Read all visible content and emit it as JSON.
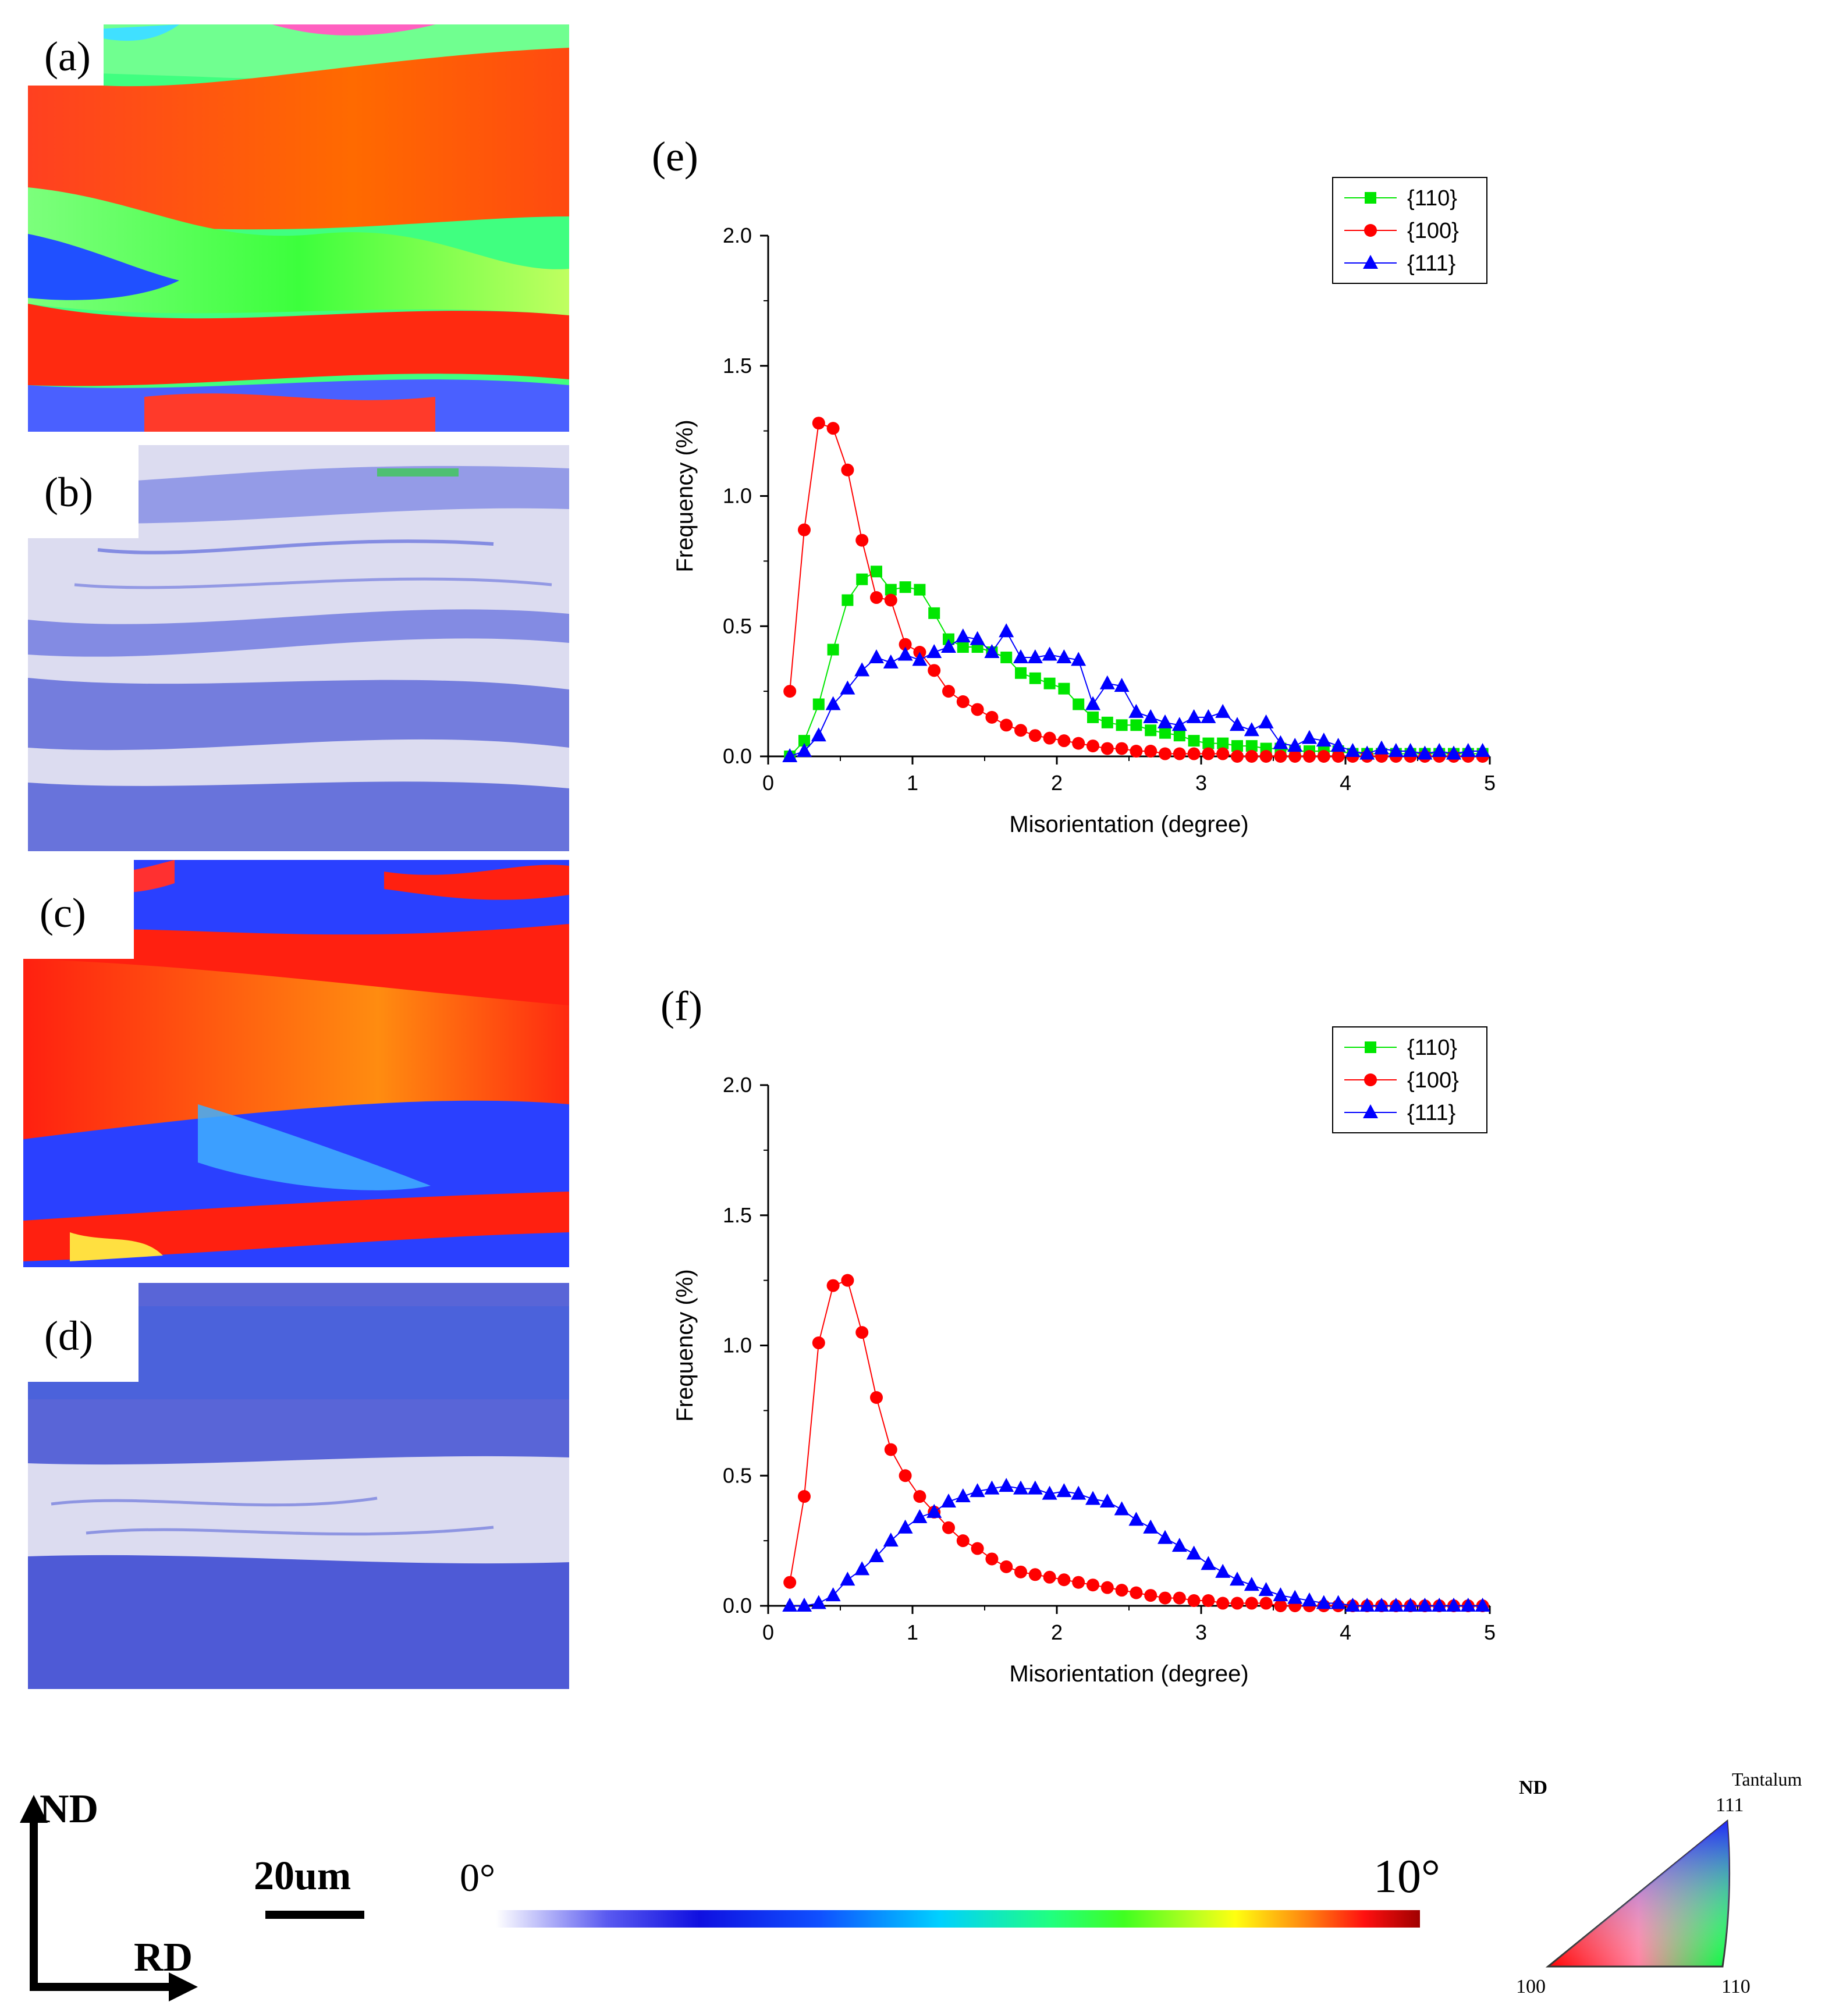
{
  "panels": {
    "a": "(a)",
    "b": "(b)",
    "c": "(c)",
    "d": "(d)",
    "e": "(e)",
    "f": "(f)"
  },
  "colors": {
    "s110": "#00e600",
    "s100": "#ff0000",
    "s111": "#0000ff",
    "map_red": "#ff2a10",
    "map_green": "#3cff3c",
    "map_blue": "#2030ff",
    "kam_bg": "#dcdcf0"
  },
  "chart_data": [
    {
      "id": "e",
      "type": "line",
      "xlabel": "Misorientation (degree)",
      "ylabel": "Frequency (%)",
      "xlim": [
        0,
        5
      ],
      "ylim": [
        0,
        2.0
      ],
      "xticks": [
        "0",
        "1",
        "2",
        "3",
        "4",
        "5"
      ],
      "yticks": [
        "0.0",
        "0.5",
        "1.0",
        "1.5",
        "2.0"
      ],
      "legend": [
        "{110}",
        "{100}",
        "{111}"
      ],
      "legend_position": "top-right",
      "series": [
        {
          "name": "{110}",
          "marker": "square",
          "color": "#00e600",
          "x": [
            0.15,
            0.25,
            0.35,
            0.45,
            0.55,
            0.65,
            0.75,
            0.85,
            0.95,
            1.05,
            1.15,
            1.25,
            1.35,
            1.45,
            1.55,
            1.65,
            1.75,
            1.85,
            1.95,
            2.05,
            2.15,
            2.25,
            2.35,
            2.45,
            2.55,
            2.65,
            2.75,
            2.85,
            2.95,
            3.05,
            3.15,
            3.25,
            3.35,
            3.45,
            3.55,
            3.65,
            3.75,
            3.85,
            3.95,
            4.05,
            4.15,
            4.25,
            4.35,
            4.45,
            4.55,
            4.65,
            4.75,
            4.85,
            4.95
          ],
          "values": [
            0.0,
            0.06,
            0.2,
            0.41,
            0.6,
            0.68,
            0.71,
            0.64,
            0.65,
            0.64,
            0.55,
            0.45,
            0.42,
            0.42,
            0.4,
            0.38,
            0.32,
            0.3,
            0.28,
            0.26,
            0.2,
            0.15,
            0.13,
            0.12,
            0.12,
            0.1,
            0.09,
            0.08,
            0.06,
            0.05,
            0.05,
            0.04,
            0.04,
            0.03,
            0.03,
            0.02,
            0.02,
            0.02,
            0.02,
            0.01,
            0.01,
            0.01,
            0.01,
            0.01,
            0.01,
            0.01,
            0.01,
            0.01,
            0.01
          ]
        },
        {
          "name": "{100}",
          "marker": "circle",
          "color": "#ff0000",
          "x": [
            0.15,
            0.25,
            0.35,
            0.45,
            0.55,
            0.65,
            0.75,
            0.85,
            0.95,
            1.05,
            1.15,
            1.25,
            1.35,
            1.45,
            1.55,
            1.65,
            1.75,
            1.85,
            1.95,
            2.05,
            2.15,
            2.25,
            2.35,
            2.45,
            2.55,
            2.65,
            2.75,
            2.85,
            2.95,
            3.05,
            3.15,
            3.25,
            3.35,
            3.45,
            3.55,
            3.65,
            3.75,
            3.85,
            3.95,
            4.05,
            4.15,
            4.25,
            4.35,
            4.45,
            4.55,
            4.65,
            4.75,
            4.85,
            4.95
          ],
          "values": [
            0.25,
            0.87,
            1.28,
            1.26,
            1.1,
            0.83,
            0.61,
            0.6,
            0.43,
            0.4,
            0.33,
            0.25,
            0.21,
            0.18,
            0.15,
            0.12,
            0.1,
            0.08,
            0.07,
            0.06,
            0.05,
            0.04,
            0.03,
            0.03,
            0.02,
            0.02,
            0.01,
            0.01,
            0.01,
            0.01,
            0.01,
            0.0,
            0.0,
            0.0,
            0.0,
            0.0,
            0.0,
            0.0,
            0.0,
            0.0,
            0.0,
            0.0,
            0.0,
            0.0,
            0.0,
            0.0,
            0.0,
            0.0,
            0.0
          ]
        },
        {
          "name": "{111}",
          "marker": "triangle",
          "color": "#0000ff",
          "x": [
            0.15,
            0.25,
            0.35,
            0.45,
            0.55,
            0.65,
            0.75,
            0.85,
            0.95,
            1.05,
            1.15,
            1.25,
            1.35,
            1.45,
            1.55,
            1.65,
            1.75,
            1.85,
            1.95,
            2.05,
            2.15,
            2.25,
            2.35,
            2.45,
            2.55,
            2.65,
            2.75,
            2.85,
            2.95,
            3.05,
            3.15,
            3.25,
            3.35,
            3.45,
            3.55,
            3.65,
            3.75,
            3.85,
            3.95,
            4.05,
            4.15,
            4.25,
            4.35,
            4.45,
            4.55,
            4.65,
            4.75,
            4.85,
            4.95
          ],
          "values": [
            0.0,
            0.02,
            0.08,
            0.2,
            0.26,
            0.33,
            0.38,
            0.36,
            0.39,
            0.37,
            0.4,
            0.42,
            0.46,
            0.45,
            0.4,
            0.48,
            0.38,
            0.38,
            0.39,
            0.38,
            0.37,
            0.2,
            0.28,
            0.27,
            0.17,
            0.15,
            0.13,
            0.12,
            0.15,
            0.15,
            0.17,
            0.12,
            0.1,
            0.13,
            0.05,
            0.04,
            0.07,
            0.06,
            0.04,
            0.02,
            0.01,
            0.03,
            0.02,
            0.02,
            0.01,
            0.02,
            0.01,
            0.02,
            0.02
          ]
        }
      ]
    },
    {
      "id": "f",
      "type": "line",
      "xlabel": "Misorientation (degree)",
      "ylabel": "Frequency (%)",
      "xlim": [
        0,
        5
      ],
      "ylim": [
        0,
        2.0
      ],
      "xticks": [
        "0",
        "1",
        "2",
        "3",
        "4",
        "5"
      ],
      "yticks": [
        "0.0",
        "0.5",
        "1.0",
        "1.5",
        "2.0"
      ],
      "legend": [
        "{110}",
        "{100}",
        "{111}"
      ],
      "legend_position": "top-right",
      "series": [
        {
          "name": "{110}",
          "marker": "square",
          "color": "#00e600",
          "x": [],
          "values": []
        },
        {
          "name": "{100}",
          "marker": "circle",
          "color": "#ff0000",
          "x": [
            0.15,
            0.25,
            0.35,
            0.45,
            0.55,
            0.65,
            0.75,
            0.85,
            0.95,
            1.05,
            1.15,
            1.25,
            1.35,
            1.45,
            1.55,
            1.65,
            1.75,
            1.85,
            1.95,
            2.05,
            2.15,
            2.25,
            2.35,
            2.45,
            2.55,
            2.65,
            2.75,
            2.85,
            2.95,
            3.05,
            3.15,
            3.25,
            3.35,
            3.45,
            3.55,
            3.65,
            3.75,
            3.85,
            3.95,
            4.05,
            4.15,
            4.25,
            4.35,
            4.45,
            4.55,
            4.65,
            4.75,
            4.85,
            4.95
          ],
          "values": [
            0.09,
            0.42,
            1.01,
            1.23,
            1.25,
            1.05,
            0.8,
            0.6,
            0.5,
            0.42,
            0.36,
            0.3,
            0.25,
            0.22,
            0.18,
            0.15,
            0.13,
            0.12,
            0.11,
            0.1,
            0.09,
            0.08,
            0.07,
            0.06,
            0.05,
            0.04,
            0.03,
            0.03,
            0.02,
            0.02,
            0.01,
            0.01,
            0.01,
            0.01,
            0.0,
            0.0,
            0.0,
            0.0,
            0.0,
            0.0,
            0.0,
            0.0,
            0.0,
            0.0,
            0.0,
            0.0,
            0.0,
            0.0,
            0.0
          ]
        },
        {
          "name": "{111}",
          "marker": "triangle",
          "color": "#0000ff",
          "x": [
            0.15,
            0.25,
            0.35,
            0.45,
            0.55,
            0.65,
            0.75,
            0.85,
            0.95,
            1.05,
            1.15,
            1.25,
            1.35,
            1.45,
            1.55,
            1.65,
            1.75,
            1.85,
            1.95,
            2.05,
            2.15,
            2.25,
            2.35,
            2.45,
            2.55,
            2.65,
            2.75,
            2.85,
            2.95,
            3.05,
            3.15,
            3.25,
            3.35,
            3.45,
            3.55,
            3.65,
            3.75,
            3.85,
            3.95,
            4.05,
            4.15,
            4.25,
            4.35,
            4.45,
            4.55,
            4.65,
            4.75,
            4.85,
            4.95
          ],
          "values": [
            0.0,
            0.0,
            0.01,
            0.04,
            0.1,
            0.14,
            0.19,
            0.25,
            0.3,
            0.34,
            0.36,
            0.4,
            0.42,
            0.44,
            0.45,
            0.46,
            0.45,
            0.45,
            0.43,
            0.44,
            0.43,
            0.41,
            0.4,
            0.37,
            0.33,
            0.3,
            0.26,
            0.23,
            0.2,
            0.16,
            0.13,
            0.1,
            0.08,
            0.06,
            0.04,
            0.03,
            0.02,
            0.01,
            0.01,
            0.0,
            0.0,
            0.0,
            0.0,
            0.0,
            0.0,
            0.0,
            0.0,
            0.0,
            0.0
          ]
        }
      ]
    }
  ],
  "axes_indicator": {
    "nd": "ND",
    "rd": "RD"
  },
  "scale_bar": {
    "label": "20um"
  },
  "colorbar": {
    "min_label": "0°",
    "max_label": "10°"
  },
  "ipf_key": {
    "nd": "ND",
    "material": "Tantalum",
    "v111": "111",
    "v100": "100",
    "v110": "110"
  }
}
